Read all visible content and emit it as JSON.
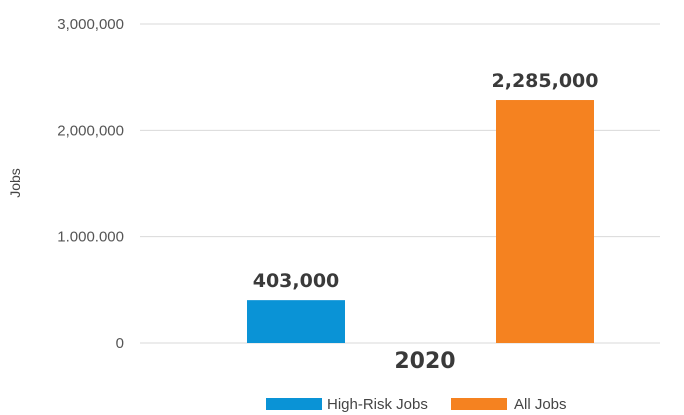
{
  "chart_data": {
    "type": "bar",
    "categories": [
      "2020"
    ],
    "series": [
      {
        "name": "High-Risk Jobs",
        "values": [
          403000
        ],
        "value_label": "403,000",
        "color": "#0a93d6"
      },
      {
        "name": "All Jobs",
        "values": [
          2285000
        ],
        "value_label": "2,285,000",
        "color": "#f58220"
      }
    ],
    "ylabel": "Jobs",
    "xlabel": "",
    "ylim": [
      0,
      3000000
    ],
    "yticks": [
      0,
      1000000,
      2000000,
      3000000
    ],
    "ytick_labels": [
      "0",
      "1.000.000",
      "2,000,000",
      "3,000,000"
    ],
    "grid": true,
    "legend_position": "bottom"
  }
}
